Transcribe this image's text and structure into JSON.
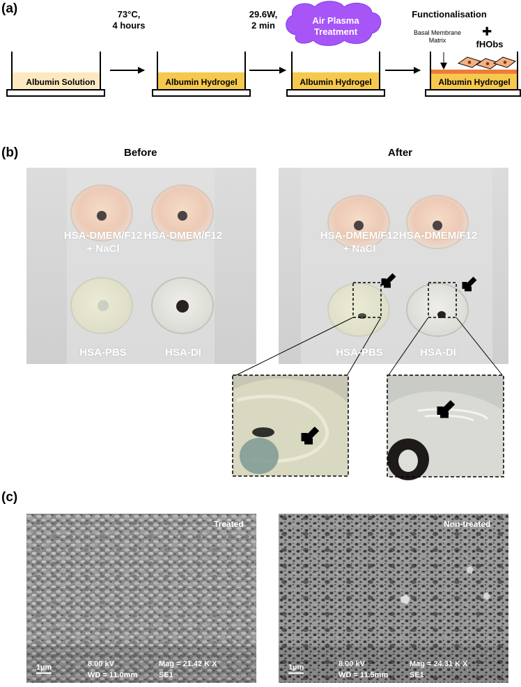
{
  "panels": {
    "a": "(a)",
    "b": "(b)",
    "c": "(c)"
  },
  "schematic": {
    "beakers": [
      "Albumin Solution",
      "Albumin Hydrogel",
      "Albumin Hydrogel",
      "Albumin Hydrogel"
    ],
    "step1": [
      "73°C,",
      "4 hours"
    ],
    "step2": [
      "29.6W,",
      "2 min"
    ],
    "plasma_cloud": [
      "Air Plasma",
      "Treatment"
    ],
    "step3_title": "Functionalisation",
    "membrane": [
      "Basal Membrane",
      "Matrix"
    ],
    "plus": "✚",
    "cells": "fHObs",
    "colors": {
      "solution": "#fde9c0",
      "hydrogel": "#f6c94e",
      "cloud": "#a855f7",
      "membrane_layer": "#ee7b3a",
      "cell_fill": "#f4b183"
    }
  },
  "photos": {
    "before_title": "Before",
    "after_title": "After",
    "wells": {
      "w1": [
        "HSA-DMEM/F12",
        "+ NaCl"
      ],
      "w2": "HSA-DMEM/F12",
      "w3": "HSA-PBS",
      "w4": "HSA-DI"
    }
  },
  "sem": {
    "treated": {
      "corner": "Treated",
      "scale": "1µm",
      "kv": "8.00 kV",
      "wd": "WD = 11.0mm",
      "mag": "Mag = 21.42 K X",
      "det": "SE1"
    },
    "nontreated": {
      "corner": "Non-treated",
      "scale": "1µm",
      "kv": "8.00 kV",
      "wd": "WD = 11.5mm",
      "mag": "Mag = 24.31 K X",
      "det": "SE1"
    }
  }
}
